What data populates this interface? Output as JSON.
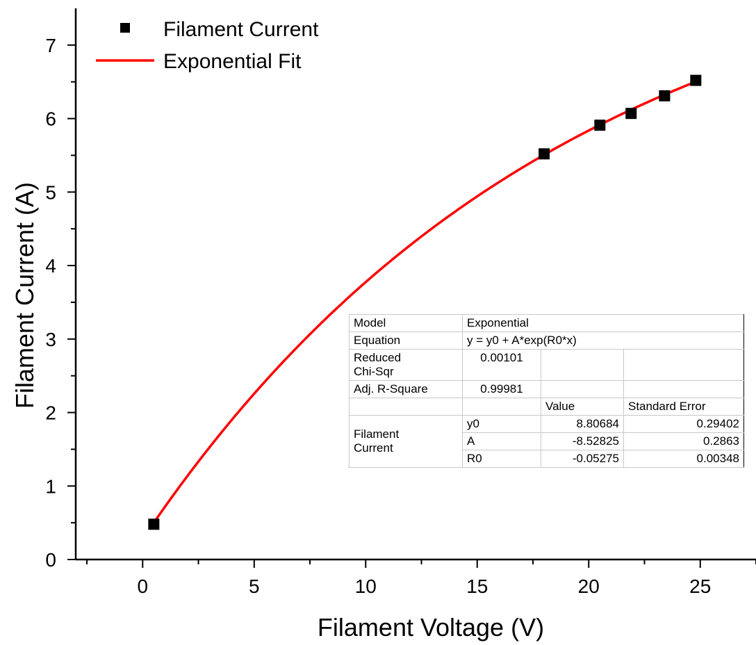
{
  "chart_data": {
    "type": "scatter",
    "xlabel": "Filament Voltage (V)",
    "ylabel": "Filament Current (A)",
    "xlim": [
      -3,
      27.5
    ],
    "ylim": [
      0,
      7.5
    ],
    "x_ticks": [
      0,
      5,
      10,
      15,
      20,
      25
    ],
    "y_ticks": [
      0,
      1,
      2,
      3,
      4,
      5,
      6,
      7
    ],
    "grid": false,
    "legend_position": "top-left",
    "series": [
      {
        "name": "Filament Current",
        "kind": "scatter",
        "marker": "square",
        "color": "#000000",
        "x": [
          0.5,
          18.0,
          20.5,
          21.9,
          23.4,
          24.8
        ],
        "y": [
          0.48,
          5.52,
          5.91,
          6.07,
          6.31,
          6.52
        ]
      },
      {
        "name": "Exponential Fit",
        "kind": "line",
        "color": "#ff0000",
        "model": {
          "y0": 8.80684,
          "A": -8.52825,
          "R0": -0.05275
        },
        "x_range": [
          0.5,
          24.8
        ]
      }
    ]
  },
  "fit_table": {
    "model_label": "Model",
    "model_value": "Exponential",
    "equation_label": "Equation",
    "equation_value": "y = y0 + A*exp(R0*x)",
    "chisqr_label_1": "Reduced",
    "chisqr_label_2": "Chi-Sqr",
    "chisqr_value": "0.00101",
    "r2_label": "Adj. R-Square",
    "r2_value": "0.99981",
    "value_header": "Value",
    "stderr_header": "Standard Error",
    "group_label_1": "Filament",
    "group_label_2": "Current",
    "params": [
      {
        "name": "y0",
        "value": "8.80684",
        "stderr": "0.29402"
      },
      {
        "name": "A",
        "value": "-8.52825",
        "stderr": "0.2863"
      },
      {
        "name": "R0",
        "value": "-0.05275",
        "stderr": "0.00348"
      }
    ]
  }
}
